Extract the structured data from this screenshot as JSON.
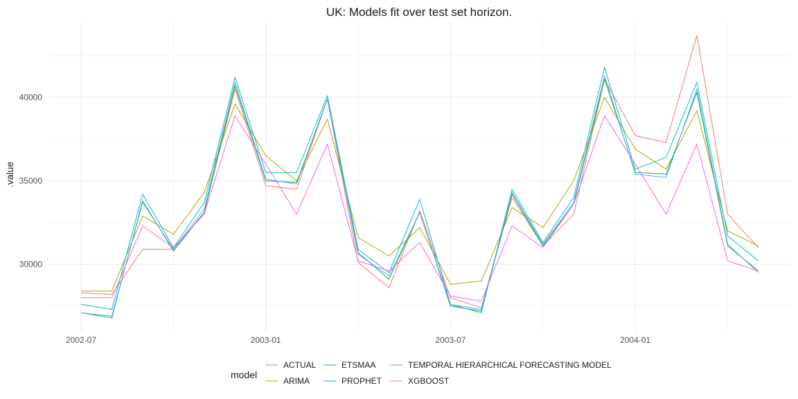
{
  "chart_data": {
    "type": "line",
    "title": "UK: Models fit over test set horizon.",
    "xlabel": "",
    "ylabel": ".value",
    "legend_title": "model",
    "legend_position": "bottom",
    "grid": true,
    "x": [
      "2002-07",
      "2002-08",
      "2002-09",
      "2002-10",
      "2002-11",
      "2002-12",
      "2003-01",
      "2003-02",
      "2003-03",
      "2003-04",
      "2003-05",
      "2003-06",
      "2003-07",
      "2003-08",
      "2003-09",
      "2003-10",
      "2003-11",
      "2003-12",
      "2004-01",
      "2004-02",
      "2004-03",
      "2004-04",
      "2004-05"
    ],
    "x_ticks": [
      "2002-07",
      "2003-01",
      "2003-07",
      "2004-01"
    ],
    "y_ticks": [
      30000,
      35000,
      40000
    ],
    "ylim": [
      26000,
      44500
    ],
    "series": [
      {
        "name": "ACTUAL",
        "color": "#F8766D",
        "values": [
          28300,
          28200,
          30900,
          30900,
          33100,
          40500,
          34700,
          34500,
          39900,
          30100,
          28600,
          33200,
          28000,
          27400,
          34000,
          31100,
          33000,
          41100,
          37700,
          37300,
          43700,
          33000,
          31000
        ]
      },
      {
        "name": "ARIMA",
        "color": "#B79F00",
        "values": [
          28400,
          28400,
          32900,
          31800,
          34300,
          39600,
          36500,
          35000,
          38700,
          31600,
          30500,
          32200,
          28800,
          29000,
          33400,
          32200,
          35000,
          40000,
          36900,
          35700,
          39200,
          32000,
          31100
        ]
      },
      {
        "name": "ETSMAA",
        "color": "#00BA38",
        "values": [
          27100,
          26800,
          33800,
          30800,
          33100,
          40700,
          35000,
          34900,
          39900,
          30700,
          29100,
          33100,
          27500,
          27200,
          34200,
          31100,
          33600,
          41100,
          35500,
          35400,
          40300,
          31100,
          29600
        ]
      },
      {
        "name": "PROPHET",
        "color": "#00BFC4",
        "values": [
          27600,
          27300,
          34200,
          31000,
          33700,
          41200,
          35500,
          35500,
          40100,
          30900,
          29500,
          33900,
          27600,
          27100,
          34500,
          31300,
          34000,
          41800,
          35700,
          36400,
          40900,
          31700,
          30200
        ]
      },
      {
        "name": "TEMPORAL HIERARCHICAL FORECASTING MODEL",
        "color": "#619CFF",
        "values": [
          27100,
          26900,
          33700,
          30900,
          33300,
          40900,
          35100,
          34800,
          39900,
          30600,
          29300,
          33100,
          27600,
          27300,
          34300,
          31200,
          33700,
          41300,
          35400,
          35200,
          40500,
          31200,
          29500
        ]
      },
      {
        "name": "XGBOOST",
        "color": "#F564E3",
        "values": [
          28000,
          28000,
          32300,
          31000,
          33000,
          38900,
          36000,
          33000,
          37200,
          30200,
          29600,
          31300,
          28100,
          27800,
          32300,
          31000,
          33600,
          38900,
          36000,
          33000,
          37200,
          30200,
          29600
        ]
      }
    ]
  }
}
